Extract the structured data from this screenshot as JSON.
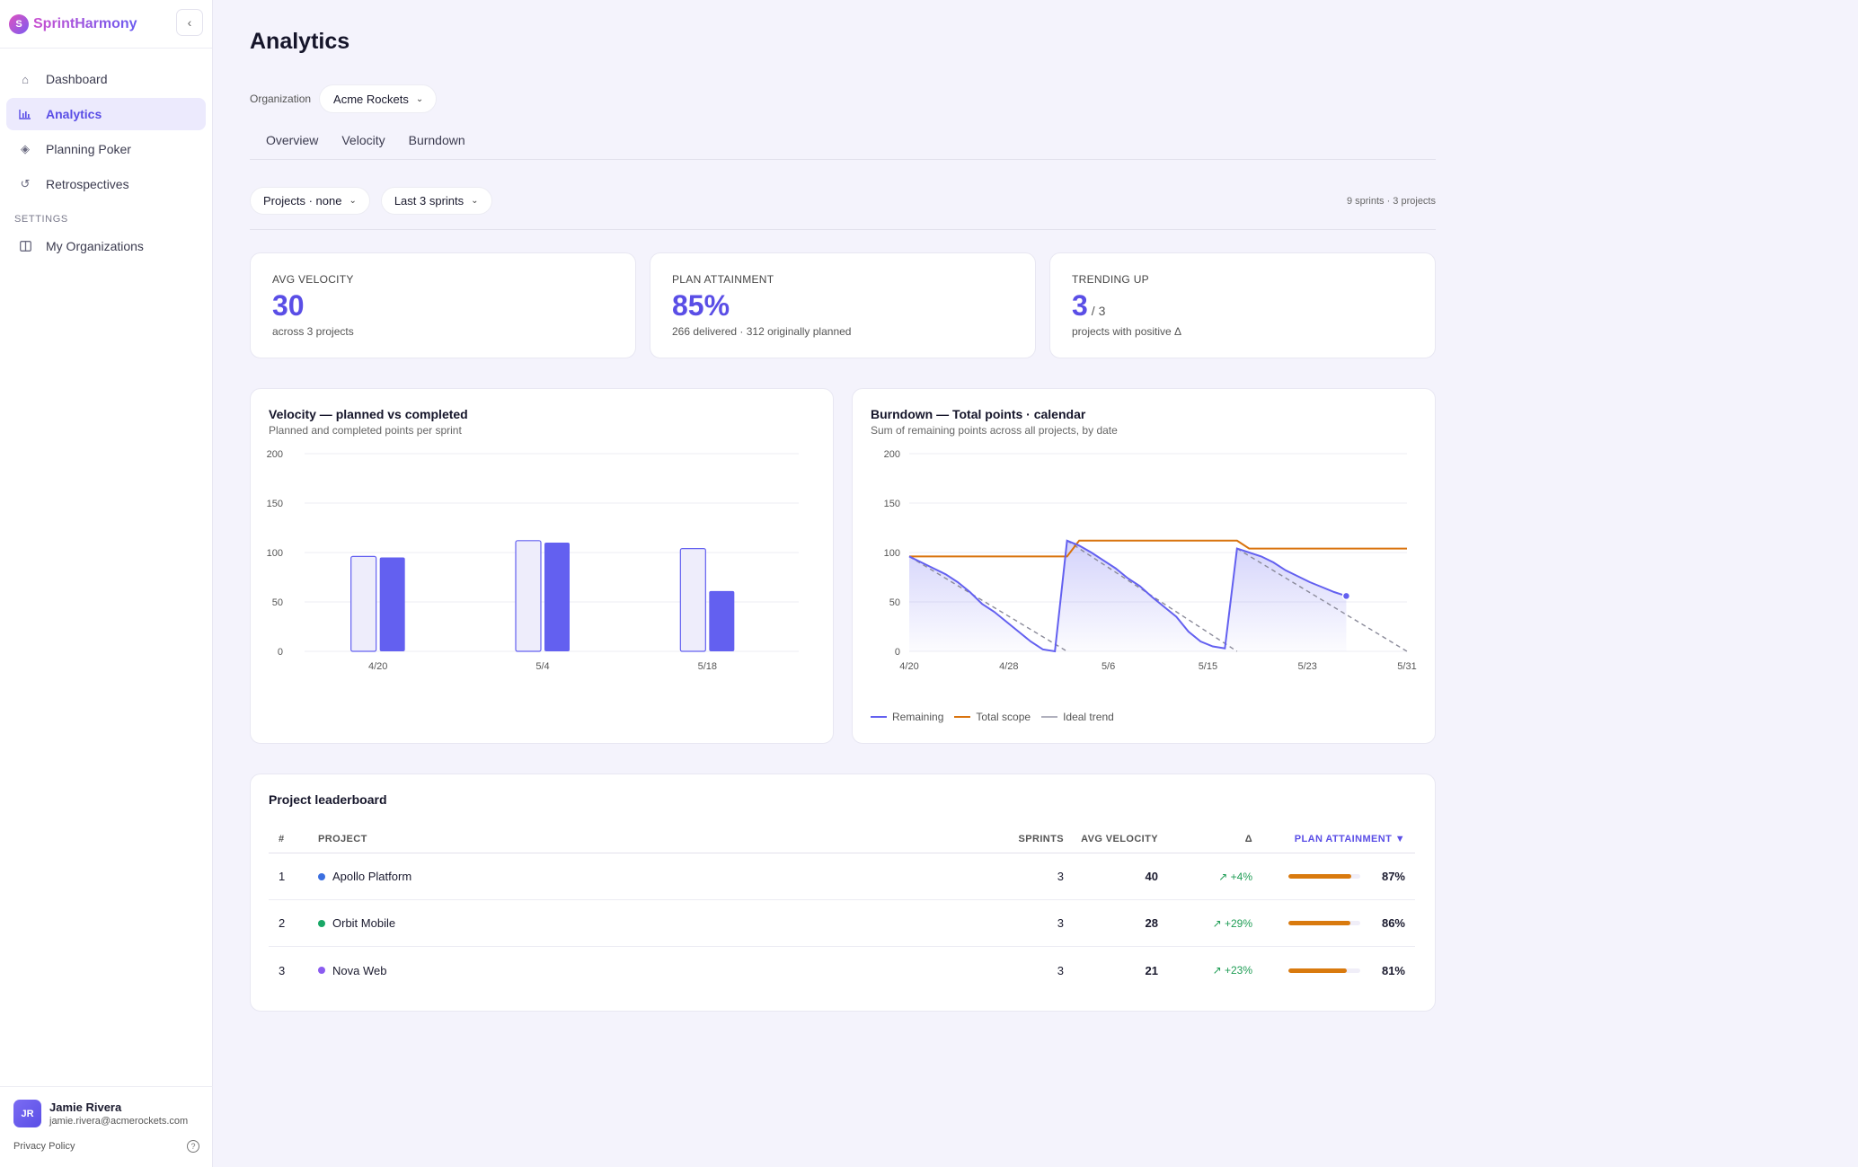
{
  "app": {
    "brand": "SprintHarmony",
    "logo_letter": "S"
  },
  "sidebar": {
    "items": [
      {
        "label": "Dashboard",
        "icon": "home-icon"
      },
      {
        "label": "Analytics",
        "icon": "bar-chart-icon",
        "active": true
      },
      {
        "label": "Planning Poker",
        "icon": "diamond-icon"
      },
      {
        "label": "Retrospectives",
        "icon": "refresh-icon"
      }
    ],
    "settings_heading": "SETTINGS",
    "settings_items": [
      {
        "label": "My Organizations",
        "icon": "columns-icon"
      }
    ],
    "user": {
      "initials": "JR",
      "name": "Jamie Rivera",
      "email": "jamie.rivera@acmerockets.com"
    },
    "privacy_label": "Privacy Policy"
  },
  "page": {
    "title": "Analytics",
    "org_label": "Organization",
    "org_value": "Acme Rockets",
    "tabs": [
      "Overview",
      "Velocity",
      "Burndown"
    ],
    "filters": {
      "projects": "Projects · none",
      "range": "Last 3 sprints"
    },
    "summary_meta": "9 sprints · 3 projects"
  },
  "stats": [
    {
      "label": "AVG VELOCITY",
      "value": "30",
      "suffix": "",
      "sub": "across 3 projects"
    },
    {
      "label": "PLAN ATTAINMENT",
      "value": "85%",
      "suffix": "",
      "sub": "266 delivered · 312 originally planned"
    },
    {
      "label": "TRENDING UP",
      "value": "3",
      "suffix": "/ 3",
      "sub": "projects with positive Δ"
    }
  ],
  "colors": {
    "accent": "#6360f0",
    "accent_light": "#eeedfb",
    "scope": "#d9730d",
    "ideal": "#8a8a99",
    "grid": "#ececf3"
  },
  "chart_data": [
    {
      "type": "bar",
      "title": "Velocity — planned vs completed",
      "subtitle": "Planned and completed points per sprint",
      "categories": [
        "4/20",
        "5/4",
        "5/18"
      ],
      "series": [
        {
          "name": "Planned",
          "values": [
            96,
            112,
            104
          ]
        },
        {
          "name": "Completed",
          "values": [
            95,
            110,
            61
          ]
        }
      ],
      "ylim": [
        0,
        200
      ],
      "yticks": [
        0,
        50,
        100,
        150,
        200
      ],
      "grid": true
    },
    {
      "type": "line",
      "title": "Burndown — Total points · calendar",
      "subtitle": "Sum of remaining points across all projects, by date",
      "xticks": [
        "4/20",
        "4/28",
        "5/6",
        "5/15",
        "5/23",
        "5/31"
      ],
      "ylim": [
        0,
        200
      ],
      "yticks": [
        0,
        50,
        100,
        150,
        200
      ],
      "grid": true,
      "legend": "bottom-left",
      "series": [
        {
          "name": "Remaining",
          "points": [
            [
              0,
              96
            ],
            [
              1,
              90
            ],
            [
              2,
              84
            ],
            [
              3,
              78
            ],
            [
              4,
              70
            ],
            [
              5,
              60
            ],
            [
              6,
              48
            ],
            [
              7,
              40
            ],
            [
              8,
              30
            ],
            [
              9,
              20
            ],
            [
              10,
              10
            ],
            [
              11,
              2
            ],
            [
              12,
              0
            ],
            [
              13,
              112
            ],
            [
              14,
              107
            ],
            [
              15,
              100
            ],
            [
              16,
              92
            ],
            [
              17,
              84
            ],
            [
              18,
              74
            ],
            [
              19,
              66
            ],
            [
              20,
              55
            ],
            [
              21,
              45
            ],
            [
              22,
              35
            ],
            [
              23,
              20
            ],
            [
              24,
              10
            ],
            [
              25,
              5
            ],
            [
              26,
              3
            ],
            [
              27,
              104
            ],
            [
              28,
              100
            ],
            [
              29,
              96
            ],
            [
              30,
              90
            ],
            [
              31,
              82
            ],
            [
              32,
              76
            ],
            [
              33,
              70
            ],
            [
              34,
              65
            ],
            [
              35,
              60
            ],
            [
              36,
              56
            ]
          ]
        },
        {
          "name": "Total scope",
          "points": [
            [
              0,
              96
            ],
            [
              13,
              96
            ],
            [
              14,
              112
            ],
            [
              27,
              112
            ],
            [
              28,
              104
            ],
            [
              41,
              104
            ]
          ]
        },
        {
          "name": "Ideal trend",
          "points": [
            [
              0,
              96
            ],
            [
              13,
              0
            ],
            [
              13,
              112
            ],
            [
              27,
              0
            ],
            [
              27,
              104
            ],
            [
              41,
              0
            ]
          ]
        }
      ]
    }
  ],
  "leaderboard": {
    "title": "Project leaderboard",
    "headers": [
      "#",
      "PROJECT",
      "SPRINTS",
      "AVG VELOCITY",
      "Δ",
      "PLAN ATTAINMENT ▼"
    ],
    "rows": [
      {
        "rank": "1",
        "project": "Apollo Platform",
        "dot": "#3b6fe0",
        "sprints": "3",
        "avg": "40",
        "delta": "+4%",
        "plan": "87%",
        "plan_value": 0.87
      },
      {
        "rank": "2",
        "project": "Orbit Mobile",
        "dot": "#18a766",
        "sprints": "3",
        "avg": "28",
        "delta": "+29%",
        "plan": "86%",
        "plan_value": 0.86
      },
      {
        "rank": "3",
        "project": "Nova Web",
        "dot": "#8b5cf0",
        "sprints": "3",
        "avg": "21",
        "delta": "+23%",
        "plan": "81%",
        "plan_value": 0.81
      }
    ]
  }
}
